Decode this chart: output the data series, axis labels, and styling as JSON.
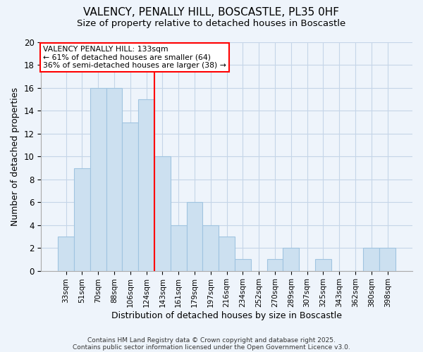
{
  "title_line1": "VALENCY, PENALLY HILL, BOSCASTLE, PL35 0HF",
  "title_line2": "Size of property relative to detached houses in Boscastle",
  "xlabel": "Distribution of detached houses by size in Boscastle",
  "ylabel": "Number of detached properties",
  "categories": [
    "33sqm",
    "51sqm",
    "70sqm",
    "88sqm",
    "106sqm",
    "124sqm",
    "143sqm",
    "161sqm",
    "179sqm",
    "197sqm",
    "216sqm",
    "234sqm",
    "252sqm",
    "270sqm",
    "289sqm",
    "307sqm",
    "325sqm",
    "343sqm",
    "362sqm",
    "380sqm",
    "398sqm"
  ],
  "values": [
    3,
    9,
    16,
    16,
    13,
    15,
    10,
    4,
    6,
    4,
    3,
    1,
    0,
    1,
    2,
    0,
    1,
    0,
    0,
    2,
    2
  ],
  "bar_color": "#cce0f0",
  "bar_edge_color": "#a0c4e0",
  "red_line_index": 6,
  "annotation_line1": "VALENCY PENALLY HILL: 133sqm",
  "annotation_line2": "← 61% of detached houses are smaller (64)",
  "annotation_line3": "36% of semi-detached houses are larger (38) →",
  "ylim": [
    0,
    20
  ],
  "yticks": [
    0,
    2,
    4,
    6,
    8,
    10,
    12,
    14,
    16,
    18,
    20
  ],
  "footer_line1": "Contains HM Land Registry data © Crown copyright and database right 2025.",
  "footer_line2": "Contains public sector information licensed under the Open Government Licence v3.0.",
  "fig_bg_color": "#eef4fb",
  "plot_bg_color": "#eef4fb",
  "grid_color": "#c5d5e8"
}
